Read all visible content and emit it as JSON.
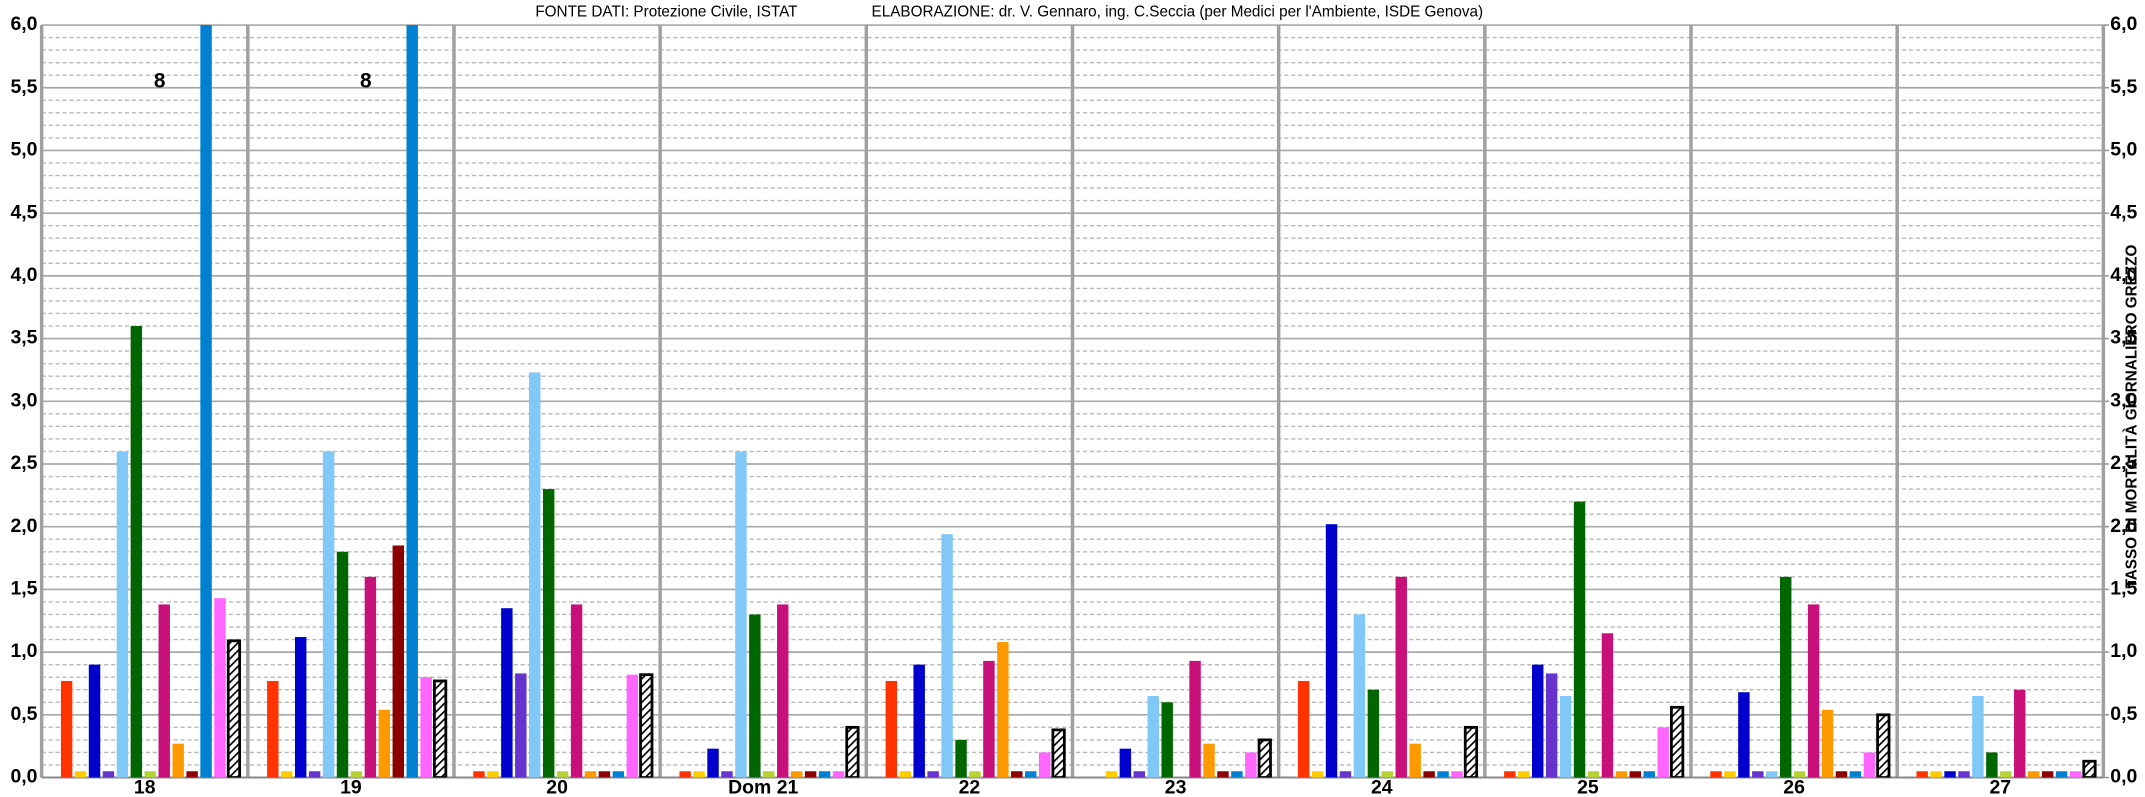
{
  "chart_data": {
    "type": "bar",
    "title": "FONTE DATI: Protezione Civile, ISTAT",
    "subtitle": "ELABORAZIONE: dr. V. Gennaro, ing. C.Seccia  (per Medici per l'Ambiente, ISDE Genova)",
    "y2_label": "TASSO DI MORTALITÀ GIORNALIERO GREZZO",
    "categories": [
      "18",
      "19",
      "20",
      "Dom 21",
      "22",
      "23",
      "24",
      "25",
      "26",
      "27"
    ],
    "series": [
      {
        "color": "#ff3300",
        "values": [
          0.77,
          0.77,
          0.05,
          0.05,
          0.77,
          0,
          0.77,
          0.05,
          0.05,
          0.05
        ]
      },
      {
        "color": "#ffcc00",
        "values": [
          0.05,
          0.05,
          0.05,
          0.05,
          0.05,
          0.05,
          0.05,
          0.05,
          0.05,
          0.05
        ]
      },
      {
        "color": "#0000cc",
        "values": [
          0.9,
          1.12,
          1.35,
          0.23,
          0.9,
          0.23,
          2.02,
          0.9,
          0.68,
          0.05
        ]
      },
      {
        "color": "#6633cc",
        "values": [
          0.05,
          0.05,
          0.83,
          0.05,
          0.05,
          0.05,
          0.05,
          0.83,
          0.05,
          0.05
        ]
      },
      {
        "color": "#80c8f8",
        "values": [
          2.6,
          2.6,
          3.23,
          2.6,
          1.94,
          0.65,
          1.3,
          0.65,
          0.05,
          0.65
        ]
      },
      {
        "color": "#006600",
        "values": [
          3.6,
          1.8,
          2.3,
          1.3,
          0.3,
          0.6,
          0.7,
          2.2,
          1.6,
          0.2
        ]
      },
      {
        "color": "#b5d334",
        "values": [
          0.05,
          0.05,
          0.05,
          0.05,
          0.05,
          0,
          0.05,
          0.05,
          0.05,
          0.05
        ]
      },
      {
        "color": "#c8107a",
        "values": [
          1.38,
          1.6,
          1.38,
          1.38,
          0.93,
          0.93,
          1.6,
          1.15,
          1.38,
          0.7
        ]
      },
      {
        "color": "#ff9900",
        "values": [
          0.27,
          0.54,
          0.05,
          0.05,
          1.08,
          0.27,
          0.27,
          0.05,
          0.54,
          0.05
        ]
      },
      {
        "color": "#8b0000",
        "values": [
          0.05,
          1.85,
          0.05,
          0.05,
          0.05,
          0.05,
          0.05,
          0.05,
          0.05,
          0.05
        ]
      },
      {
        "color": "#0080d0",
        "values": [
          8,
          8,
          0.05,
          0.05,
          0.05,
          0.05,
          0.05,
          0.05,
          0.05,
          0.05
        ],
        "value_labels": [
          "8",
          "8",
          null,
          null,
          null,
          null,
          null,
          null,
          null,
          null
        ]
      },
      {
        "color": "#ff66ff",
        "values": [
          1.43,
          0.8,
          0.82,
          0.05,
          0.2,
          0.2,
          0.05,
          0.4,
          0.2,
          0.05
        ]
      },
      {
        "color": "#000000",
        "pattern": "hatch",
        "values": [
          1.09,
          0.77,
          0.82,
          0.4,
          0.38,
          0.3,
          0.4,
          0.56,
          0.5,
          0.13
        ]
      }
    ],
    "ylim": [
      0,
      6
    ],
    "yticks": [
      {
        "value": 0,
        "label": "0,0"
      },
      {
        "value": 0.5,
        "label": "0,5"
      },
      {
        "value": 1,
        "label": "1,0"
      },
      {
        "value": 1.5,
        "label": "1,5"
      },
      {
        "value": 2,
        "label": "2,0"
      },
      {
        "value": 2.5,
        "label": "2,5"
      },
      {
        "value": 3,
        "label": "3,0"
      },
      {
        "value": 3.5,
        "label": "3,5"
      },
      {
        "value": 4,
        "label": "4,0"
      },
      {
        "value": 4.5,
        "label": "4,5"
      },
      {
        "value": 5,
        "label": "5,0"
      },
      {
        "value": 5.5,
        "label": "5,5"
      },
      {
        "value": 6,
        "label": "6,0"
      }
    ],
    "y2lim": [
      0,
      6
    ],
    "y2ticks": [
      {
        "value": 0,
        "label": "0,0"
      },
      {
        "value": 0.5,
        "label": "0,5"
      },
      {
        "value": 1,
        "label": "1,0"
      },
      {
        "value": 1.5,
        "label": "1,5"
      },
      {
        "value": 2,
        "label": "2,0"
      },
      {
        "value": 2.5,
        "label": "2,5"
      },
      {
        "value": 3,
        "label": "3,0"
      },
      {
        "value": 3.5,
        "label": "3,5"
      },
      {
        "value": 4,
        "label": "4,0"
      },
      {
        "value": 4.5,
        "label": "4,5"
      },
      {
        "value": 5,
        "label": "5,0"
      },
      {
        "value": 5.5,
        "label": "5,5"
      },
      {
        "value": 6,
        "label": "6,0"
      }
    ],
    "grid": true
  }
}
